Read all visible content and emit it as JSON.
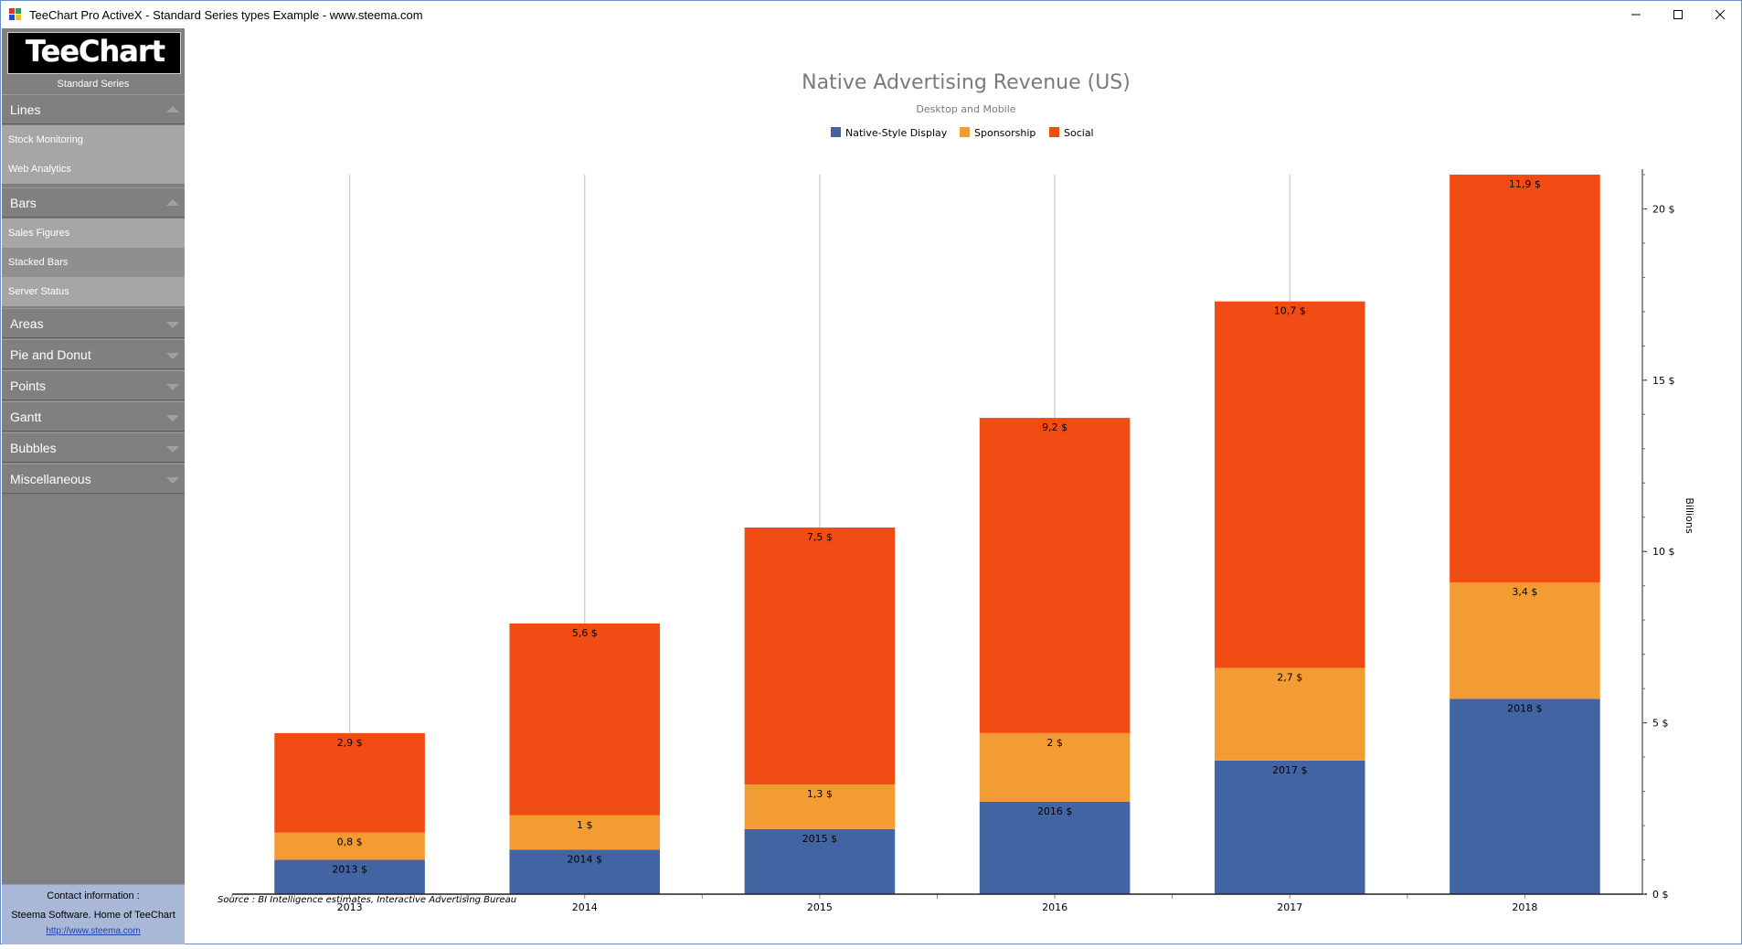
{
  "window": {
    "title": "TeeChart Pro ActiveX - Standard Series types Example - www.steema.com"
  },
  "sidebar": {
    "logo": "TeeChart",
    "logo_subtitle": "Standard Series",
    "categories": [
      {
        "label": "Lines",
        "expanded": true,
        "items": [
          "Stock Monitoring",
          "Web Analytics"
        ]
      },
      {
        "label": "Bars",
        "expanded": true,
        "items": [
          "Sales Figures",
          "Stacked Bars",
          "Server Status"
        ]
      },
      {
        "label": "Areas",
        "expanded": false,
        "items": []
      },
      {
        "label": "Pie and Donut",
        "expanded": false,
        "items": []
      },
      {
        "label": "Points",
        "expanded": false,
        "items": []
      },
      {
        "label": "Gantt",
        "expanded": false,
        "items": []
      },
      {
        "label": "Bubbles",
        "expanded": false,
        "items": []
      },
      {
        "label": "Miscellaneous",
        "expanded": false,
        "items": []
      }
    ],
    "contact": {
      "line1": "Contact information :",
      "line2": "Steema Software. Home of TeeChart",
      "link": "http://www.steema.com"
    }
  },
  "chart_data": {
    "type": "bar",
    "stacked": true,
    "title": "Native Advertising Revenue (US)",
    "subtitle": "Desktop and Mobile",
    "footer": "Source : BI Intelligence estimates, Interactive Advertising Bureau",
    "ylabel": "Billions",
    "ylim": [
      0,
      21
    ],
    "yticks": [
      0,
      5,
      10,
      15,
      20
    ],
    "ytick_labels": [
      "0 $",
      "5 $",
      "10 $",
      "15 $",
      "20 $"
    ],
    "y_axis_side": "right",
    "legend_position": "top",
    "categories": [
      "2013",
      "2014",
      "2015",
      "2016",
      "2017",
      "2018"
    ],
    "series": [
      {
        "name": "Native-Style Display",
        "color": "#4264a3",
        "values": [
          1.0,
          1.3,
          1.9,
          2.7,
          3.9,
          5.7
        ],
        "labels": [
          "2013 $",
          "2014 $",
          "2015 $",
          "2016 $",
          "2017 $",
          "2018 $"
        ]
      },
      {
        "name": "Sponsorship",
        "color": "#f39c34",
        "values": [
          0.8,
          1.0,
          1.3,
          2.0,
          2.7,
          3.4
        ],
        "labels": [
          "0,8 $",
          "1 $",
          "1,3 $",
          "2 $",
          "2,7 $",
          "3,4 $"
        ]
      },
      {
        "name": "Social",
        "color": "#f04c14",
        "values": [
          2.9,
          5.6,
          7.5,
          9.2,
          10.7,
          11.9
        ],
        "labels": [
          "2,9 $",
          "5,6 $",
          "7,5 $",
          "9,2 $",
          "10,7 $",
          "11,9 $"
        ]
      }
    ]
  }
}
